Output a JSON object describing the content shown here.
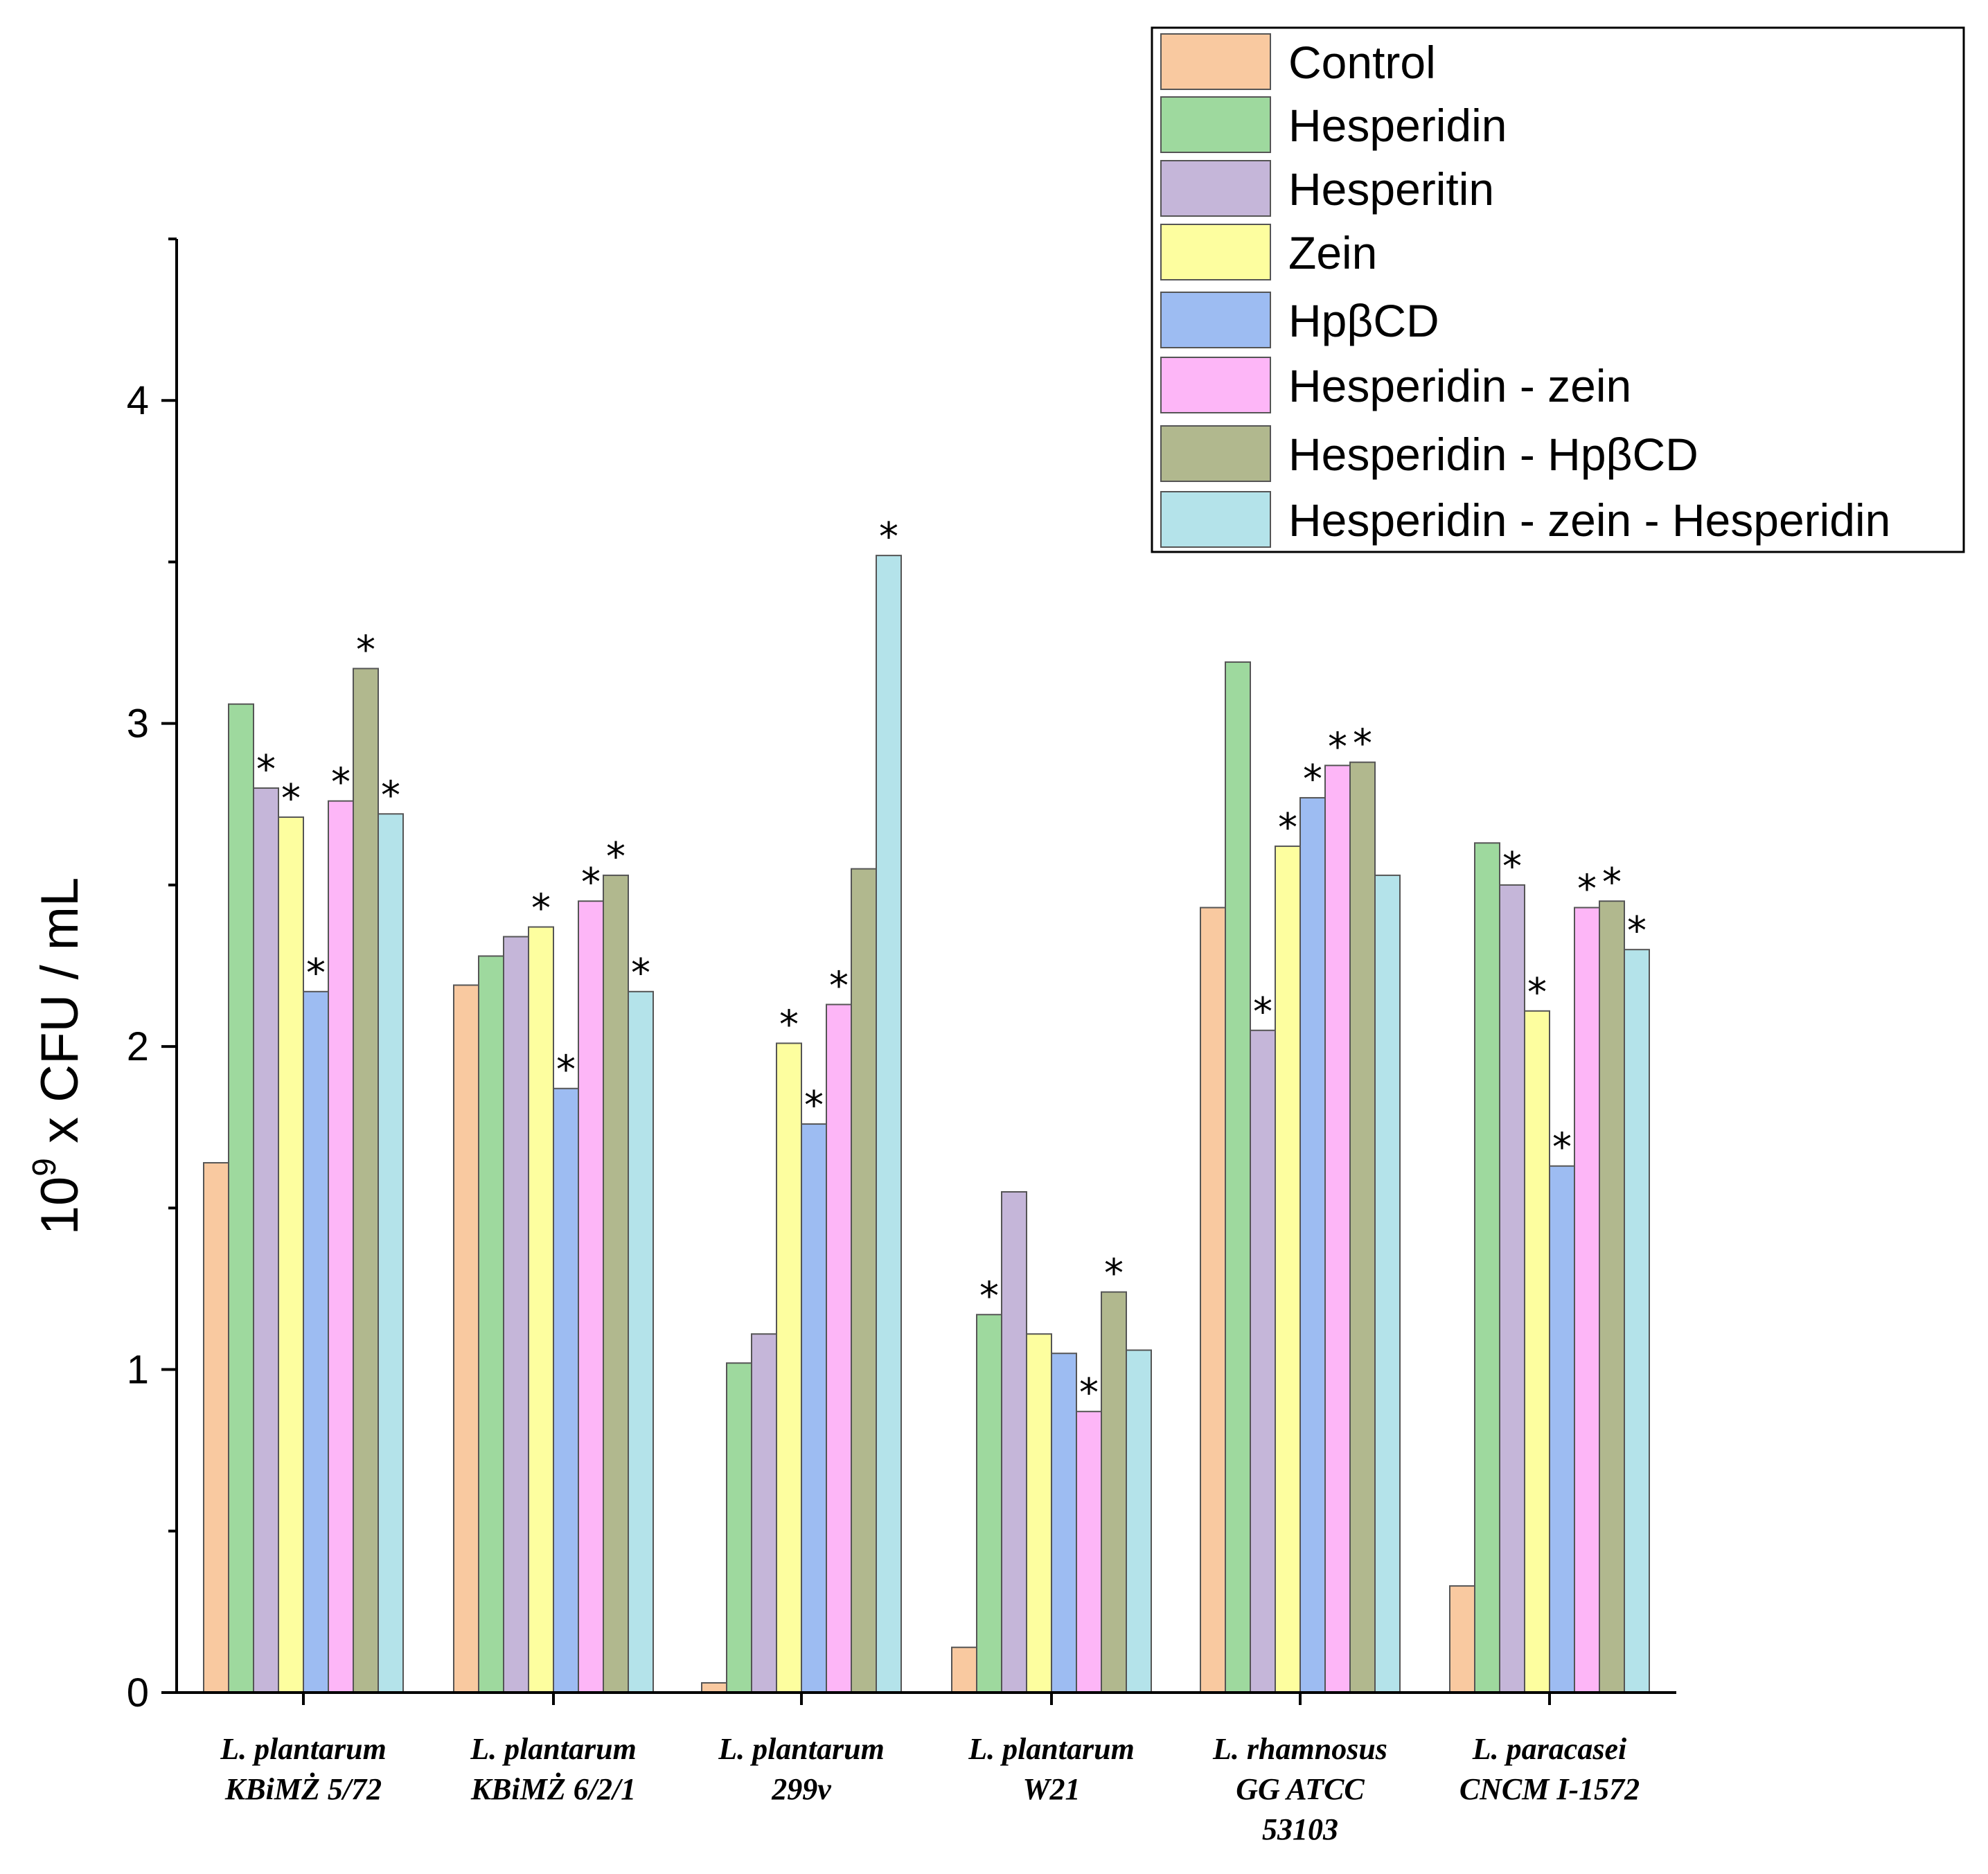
{
  "chart_data": {
    "type": "bar",
    "ylabel": {
      "base": "10",
      "exp": "9",
      "rest": " x CFU / mL"
    },
    "ylim": [
      0,
      4.5
    ],
    "yticks": [
      0,
      1,
      2,
      3,
      4
    ],
    "categories": [
      [
        "L. plantarum",
        "KBiMŻ 5/72"
      ],
      [
        "L. plantarum",
        "KBiMŻ 6/2/1"
      ],
      [
        "L. plantarum",
        "299v"
      ],
      [
        "L. plantarum",
        "W21"
      ],
      [
        "L. rhamnosus",
        "GG ATCC",
        "53103"
      ],
      [
        "L. paracasei",
        "CNCM I-1572"
      ]
    ],
    "series": [
      {
        "name": "Control",
        "color": "#F9C9A0",
        "values": [
          1.64,
          2.19,
          0.03,
          0.14,
          2.43,
          0.33
        ],
        "stars": [
          false,
          false,
          false,
          false,
          false,
          false
        ]
      },
      {
        "name": "Hesperidin",
        "color": "#9ED99E",
        "values": [
          3.06,
          2.28,
          1.02,
          1.17,
          3.19,
          2.63
        ],
        "stars": [
          false,
          false,
          false,
          true,
          false,
          false
        ]
      },
      {
        "name": "Hesperitin",
        "color": "#C5B6D9",
        "values": [
          2.8,
          2.34,
          1.11,
          1.55,
          2.05,
          2.5
        ],
        "stars": [
          true,
          false,
          false,
          false,
          true,
          true
        ]
      },
      {
        "name": "Zein",
        "color": "#FDFE9F",
        "values": [
          2.71,
          2.37,
          2.01,
          1.11,
          2.62,
          2.11
        ],
        "stars": [
          true,
          true,
          true,
          false,
          true,
          true
        ]
      },
      {
        "name": "HpβCD",
        "color": "#9DBCF2",
        "values": [
          2.17,
          1.87,
          1.76,
          1.05,
          2.77,
          1.63
        ],
        "stars": [
          true,
          true,
          true,
          false,
          true,
          true
        ]
      },
      {
        "name": "Hesperidin - zein",
        "color": "#FDB6F7",
        "values": [
          2.76,
          2.45,
          2.13,
          0.87,
          2.87,
          2.43
        ],
        "stars": [
          true,
          true,
          true,
          true,
          true,
          true
        ]
      },
      {
        "name": "Hesperidin - HpβCD",
        "color": "#B1B88E",
        "values": [
          3.17,
          2.53,
          2.55,
          1.24,
          2.88,
          2.45
        ],
        "stars": [
          true,
          true,
          false,
          true,
          true,
          true
        ]
      },
      {
        "name": "Hesperidin - zein - Hesperidin",
        "color": "#B4E3EA",
        "values": [
          2.72,
          2.17,
          3.52,
          1.06,
          2.53,
          2.3
        ],
        "stars": [
          true,
          true,
          true,
          false,
          false,
          true
        ]
      }
    ],
    "star_symbol": "*",
    "legend_position": "top-right",
    "grid": false
  }
}
